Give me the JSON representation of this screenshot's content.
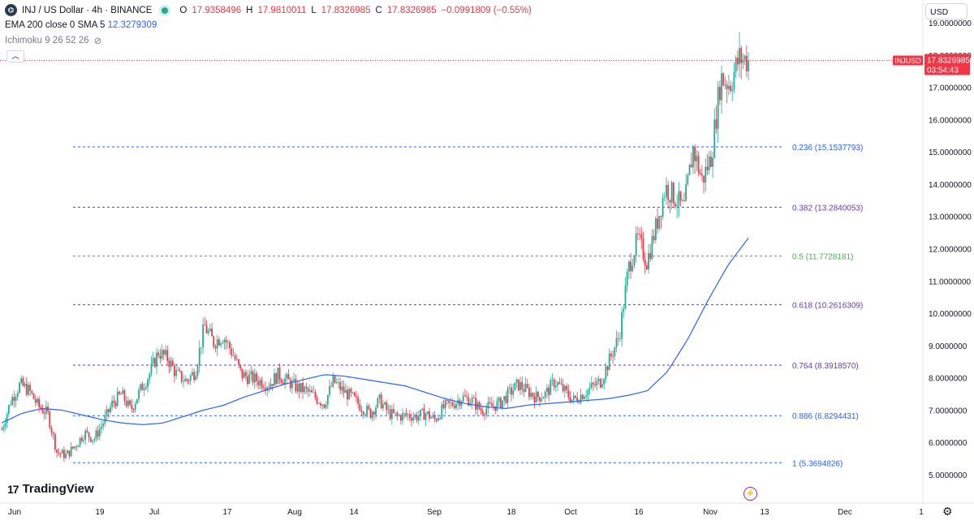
{
  "legend": {
    "symbol_icon": "inj-logo-icon",
    "symbol_title": "INJ / US Dollar · 4h · BINANCE",
    "status": "market-open-dot",
    "o_label": "O",
    "o_value": "17.9358496",
    "h_label": "H",
    "h_value": "17.9810011",
    "l_label": "L",
    "l_value": "17.8326985",
    "c_label": "C",
    "c_value": "17.8326985",
    "change": "−0.0991809 (−0.55%)",
    "ema_label": "EMA 200 close 0 SMA 5",
    "ema_value": "12.3279309",
    "ichimoku_label": "Ichimoku 9 26 52 26"
  },
  "toolbar": {
    "currency": "USD",
    "collapse_icon": "chevron-up-icon",
    "settings_icon": "gear-icon"
  },
  "brand": {
    "name": "TradingView",
    "logo_icon": "tradingview-logo-icon"
  },
  "price_tag": {
    "symbol": "INJUSD",
    "price": "17.8326985",
    "countdown": "03:54:43"
  },
  "colors": {
    "up": "#22ab94",
    "down": "#f23645",
    "ema": "#2962ff",
    "fib_blue": "#2962ff",
    "fib_purple": "#673ab7",
    "fib_green": "#4caf50"
  },
  "chart_data": {
    "type": "candlestick",
    "x_axis_labels": [
      "Jun",
      "19",
      "Jul",
      "17",
      "Aug",
      "14",
      "Sep",
      "18",
      "Oct",
      "16",
      "Nov",
      "13",
      "Dec",
      "1"
    ],
    "y_ticks": [
      "5.0000000",
      "6.0000000",
      "7.0000000",
      "8.0000000",
      "9.0000000",
      "10.0000000",
      "11.0000000",
      "12.0000000",
      "13.0000000",
      "14.0000000",
      "15.0000000",
      "16.0000000",
      "17.0000000",
      "18.0000000",
      "19.0000000"
    ],
    "ylim": [
      4.5,
      19.1
    ],
    "close_series": [
      6.4,
      7.3,
      7.8,
      7.6,
      7.1,
      6.9,
      5.7,
      5.6,
      5.9,
      6.3,
      6.1,
      6.6,
      7.2,
      7.5,
      7.0,
      7.6,
      8.1,
      8.8,
      8.6,
      8.1,
      7.9,
      8.2,
      9.6,
      9.1,
      9.3,
      8.8,
      8.1,
      8.0,
      7.9,
      7.8,
      8.1,
      7.9,
      7.7,
      7.6,
      7.4,
      7.2,
      7.9,
      7.6,
      7.4,
      7.1,
      6.9,
      7.3,
      6.9,
      6.8,
      6.85,
      6.8,
      6.9,
      6.7,
      7.1,
      7.2,
      7.4,
      7.3,
      7.0,
      7.1,
      7.2,
      7.5,
      7.8,
      7.6,
      7.4,
      7.5,
      7.9,
      7.6,
      7.3,
      7.5,
      7.7,
      7.9,
      8.6,
      9.3,
      11.4,
      12.3,
      11.6,
      12.7,
      13.9,
      13.6,
      13.2,
      15.1,
      14.1,
      14.9,
      17.3,
      17.1,
      17.9,
      17.83
    ],
    "ema_series": [
      6.6,
      6.9,
      7.05,
      7.0,
      6.85,
      6.7,
      6.6,
      6.55,
      6.6,
      6.8,
      7.0,
      7.15,
      7.4,
      7.6,
      7.8,
      7.95,
      8.1,
      8.05,
      7.95,
      7.85,
      7.75,
      7.55,
      7.35,
      7.2,
      7.1,
      7.05,
      7.15,
      7.2,
      7.25,
      7.3,
      7.35,
      7.45,
      7.6,
      8.2,
      9.2,
      10.4,
      11.5,
      12.33
    ],
    "fib_levels": [
      {
        "label": "0.236 (15.1537793)",
        "value": 15.1537793
      },
      {
        "label": "0.382 (13.2840053)",
        "value": 13.2840053
      },
      {
        "label": "0.5 (11.7728181)",
        "value": 11.7728181
      },
      {
        "label": "0.618 (10.2616309)",
        "value": 10.2616309
      },
      {
        "label": "0.764 (8.3918570)",
        "value": 8.391857
      },
      {
        "label": "0.886 (6.8294431)",
        "value": 6.8294431
      },
      {
        "label": "1 (5.3694826)",
        "value": 5.3694826
      }
    ],
    "last_price": 17.8326985
  }
}
